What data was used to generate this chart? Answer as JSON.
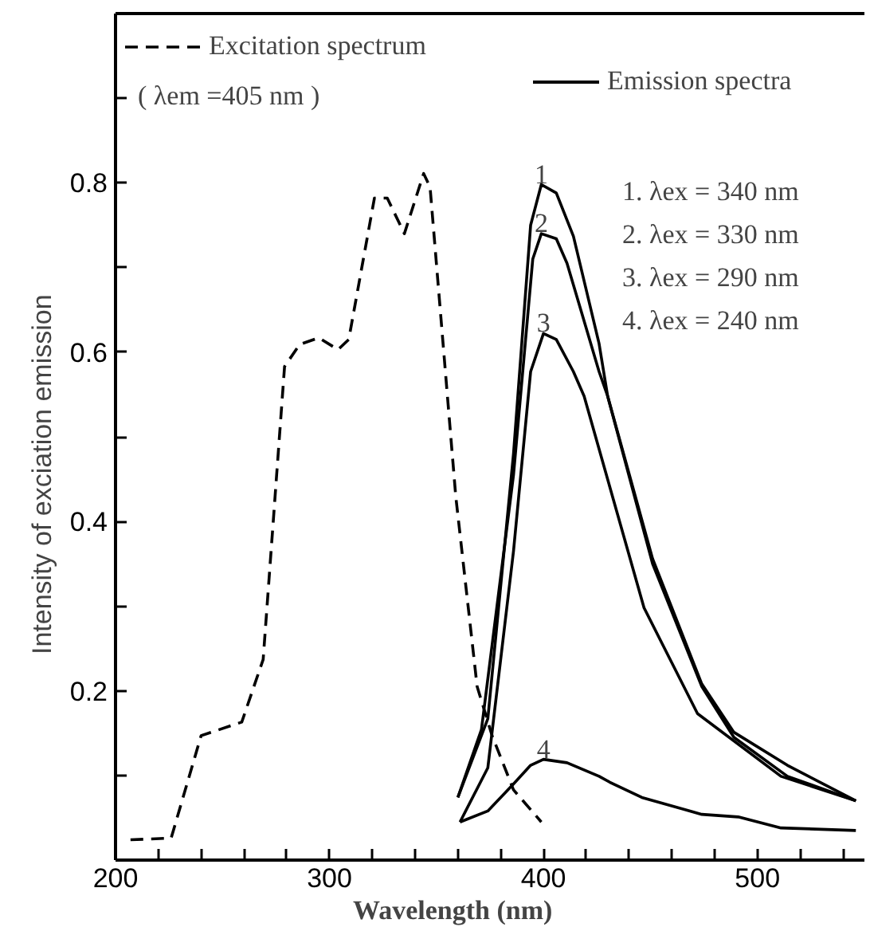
{
  "chart_data": {
    "type": "line",
    "xlabel": "Wavelength            (nm)",
    "ylabel": "Intensity of  exciation          emission",
    "xlim": [
      200,
      550
    ],
    "ylim": [
      0,
      1.0
    ],
    "xticks": [
      200,
      {
        "value": 220,
        "label": null
      },
      {
        "value": 240,
        "label": null
      },
      {
        "value": 260,
        "label": null
      },
      {
        "value": 280,
        "label": null
      },
      300,
      {
        "value": 320,
        "label": null
      },
      {
        "value": 340,
        "label": null
      },
      {
        "value": 360,
        "label": null
      },
      {
        "value": 380,
        "label": null
      },
      400,
      {
        "value": 420,
        "label": null
      },
      {
        "value": 440,
        "label": null
      },
      {
        "value": 460,
        "label": null
      },
      {
        "value": 480,
        "label": null
      },
      500,
      {
        "value": 520,
        "label": null
      },
      {
        "value": 540,
        "label": null
      }
    ],
    "yticks": [
      {
        "value": 0.1,
        "label": null
      },
      0.2,
      {
        "value": 0.3,
        "label": null
      },
      0.4,
      {
        "value": 0.5,
        "label": null
      },
      0.6,
      {
        "value": 0.7,
        "label": null
      },
      0.8,
      {
        "value": 0.9,
        "label": null
      }
    ],
    "grid": false,
    "legend": "top",
    "series": [
      {
        "name": "Excitation spectrum",
        "color": "#000000",
        "line_style": "dashed",
        "x": [
          207,
          226,
          240,
          259,
          269,
          279,
          286,
          295,
          304,
          309,
          321,
          327,
          335,
          344,
          347,
          359,
          369,
          376,
          386,
          399
        ],
        "values": [
          0.024,
          0.026,
          0.147,
          0.163,
          0.237,
          0.583,
          0.609,
          0.617,
          0.603,
          0.615,
          0.782,
          0.782,
          0.74,
          0.811,
          0.795,
          0.43,
          0.205,
          0.147,
          0.083,
          0.045
        ]
      },
      {
        "name": "1",
        "color": "#000000",
        "line_style": "solid",
        "x": [
          360,
          374,
          386,
          394,
          399,
          406,
          414,
          426,
          430,
          451,
          474,
          489,
          514,
          546
        ],
        "values": [
          0.074,
          0.167,
          0.48,
          0.75,
          0.798,
          0.788,
          0.737,
          0.61,
          0.548,
          0.356,
          0.208,
          0.151,
          0.112,
          0.07
        ]
      },
      {
        "name": "2",
        "color": "#000000",
        "line_style": "solid",
        "x": [
          360,
          371,
          386,
          395,
          399,
          406,
          411,
          426,
          430,
          451,
          474,
          489,
          514,
          546
        ],
        "values": [
          0.074,
          0.154,
          0.455,
          0.71,
          0.74,
          0.734,
          0.705,
          0.577,
          0.548,
          0.35,
          0.205,
          0.145,
          0.099,
          0.07
        ]
      },
      {
        "name": "3",
        "color": "#000000",
        "line_style": "solid",
        "x": [
          361,
          374,
          386,
          394,
          400,
          406,
          414,
          419,
          447,
          472,
          511,
          546
        ],
        "values": [
          0.045,
          0.109,
          0.365,
          0.577,
          0.622,
          0.615,
          0.577,
          0.548,
          0.298,
          0.173,
          0.099,
          0.07
        ]
      },
      {
        "name": "4",
        "color": "#000000",
        "line_style": "solid",
        "x": [
          361,
          374,
          386,
          394,
          400,
          411,
          426,
          431,
          446,
          474,
          491,
          511,
          546
        ],
        "values": [
          0.045,
          0.058,
          0.09,
          0.112,
          0.119,
          0.115,
          0.099,
          0.092,
          0.074,
          0.054,
          0.051,
          0.038,
          0.035
        ]
      }
    ],
    "annotations": [
      "( λem =405 nm )",
      "Emission spectra",
      "1.  λex = 340 nm",
      "2.  λex = 330 nm",
      "3.  λex = 290 nm",
      "4.  λex = 240 nm"
    ]
  }
}
